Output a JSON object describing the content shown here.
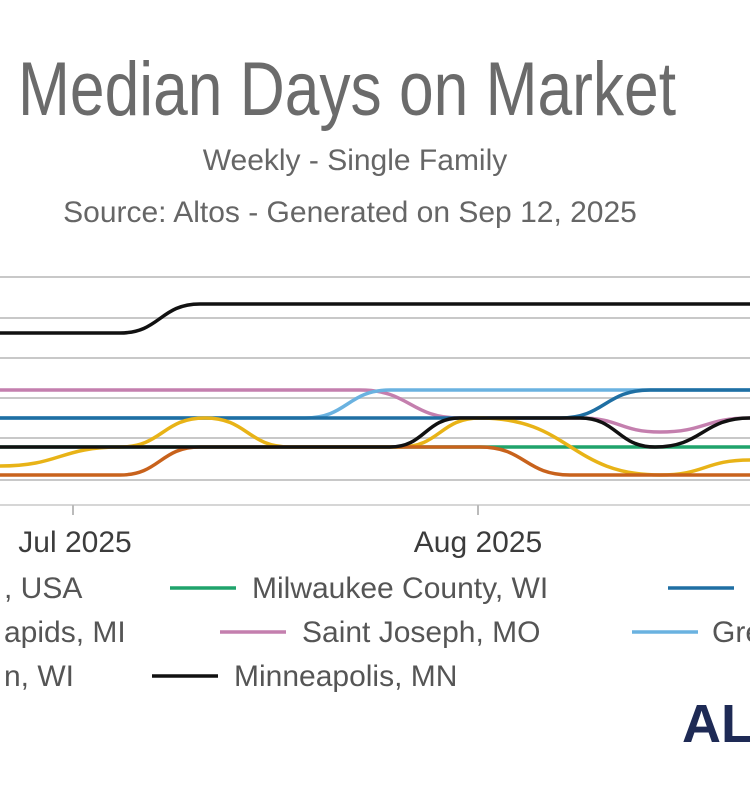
{
  "chart_data": {
    "type": "line",
    "title": "Median Days on Market",
    "subtitle": "Weekly - Single Family",
    "source": "Source: Altos - Generated on Sep 12, 2025",
    "x_ticks": [
      "Jul 2025",
      "Aug 2025"
    ],
    "grid": true,
    "legend_placement": "bottom",
    "series": [
      {
        "name": "Minneapolis, MN",
        "color": "#111111",
        "points": [
          [
            0,
            333
          ],
          [
            120,
            333
          ],
          [
            200,
            304
          ],
          [
            750,
            304
          ]
        ]
      },
      {
        "name": "Saint Joseph, MO",
        "color": "#c47fae",
        "points": [
          [
            0,
            390
          ],
          [
            360,
            390
          ],
          [
            460,
            418
          ],
          [
            580,
            418
          ],
          [
            660,
            432
          ],
          [
            750,
            418
          ]
        ]
      },
      {
        "name": "Gre",
        "color": "#6ab2e0",
        "points": [
          [
            0,
            418
          ],
          [
            305,
            418
          ],
          [
            390,
            390
          ],
          [
            750,
            390
          ]
        ]
      },
      {
        "name": "",
        "color": "#1f6fa3",
        "points": [
          [
            0,
            418
          ],
          [
            560,
            418
          ],
          [
            650,
            390
          ],
          [
            750,
            390
          ]
        ]
      },
      {
        "name": "Milwaukee County, WI",
        "color": "#1fa36b",
        "points": [
          [
            0,
            447
          ],
          [
            490,
            447
          ],
          [
            750,
            447
          ]
        ]
      },
      {
        "name": "apids, MI",
        "color": "#e8b317",
        "points": [
          [
            0,
            466
          ],
          [
            120,
            447
          ],
          [
            205,
            418
          ],
          [
            290,
            447
          ],
          [
            400,
            447
          ],
          [
            480,
            418
          ],
          [
            660,
            475
          ],
          [
            750,
            460
          ]
        ]
      },
      {
        "name": ", USA",
        "color": "#c8621c",
        "points": [
          [
            0,
            475
          ],
          [
            120,
            475
          ],
          [
            200,
            447
          ],
          [
            480,
            447
          ],
          [
            570,
            475
          ],
          [
            750,
            475
          ]
        ]
      },
      {
        "name": "n, WI",
        "color": "#111111",
        "points": [
          [
            0,
            447
          ],
          [
            390,
            447
          ],
          [
            460,
            418
          ],
          [
            580,
            418
          ],
          [
            655,
            447
          ],
          [
            750,
            418
          ]
        ]
      }
    ],
    "legend": [
      {
        "label": ", USA",
        "color": "#c8621c"
      },
      {
        "label": "Milwaukee County, WI",
        "color": "#1fa36b"
      },
      {
        "label": "",
        "color": "#1f6fa3"
      },
      {
        "label": "apids, MI",
        "color": "#e8b317"
      },
      {
        "label": "Saint Joseph, MO",
        "color": "#c47fae"
      },
      {
        "label": "Gre",
        "color": "#6ab2e0"
      },
      {
        "label": "n, WI",
        "color": "#111111"
      },
      {
        "label": "Minneapolis, MN",
        "color": "#111111"
      }
    ],
    "logo": "AL"
  }
}
